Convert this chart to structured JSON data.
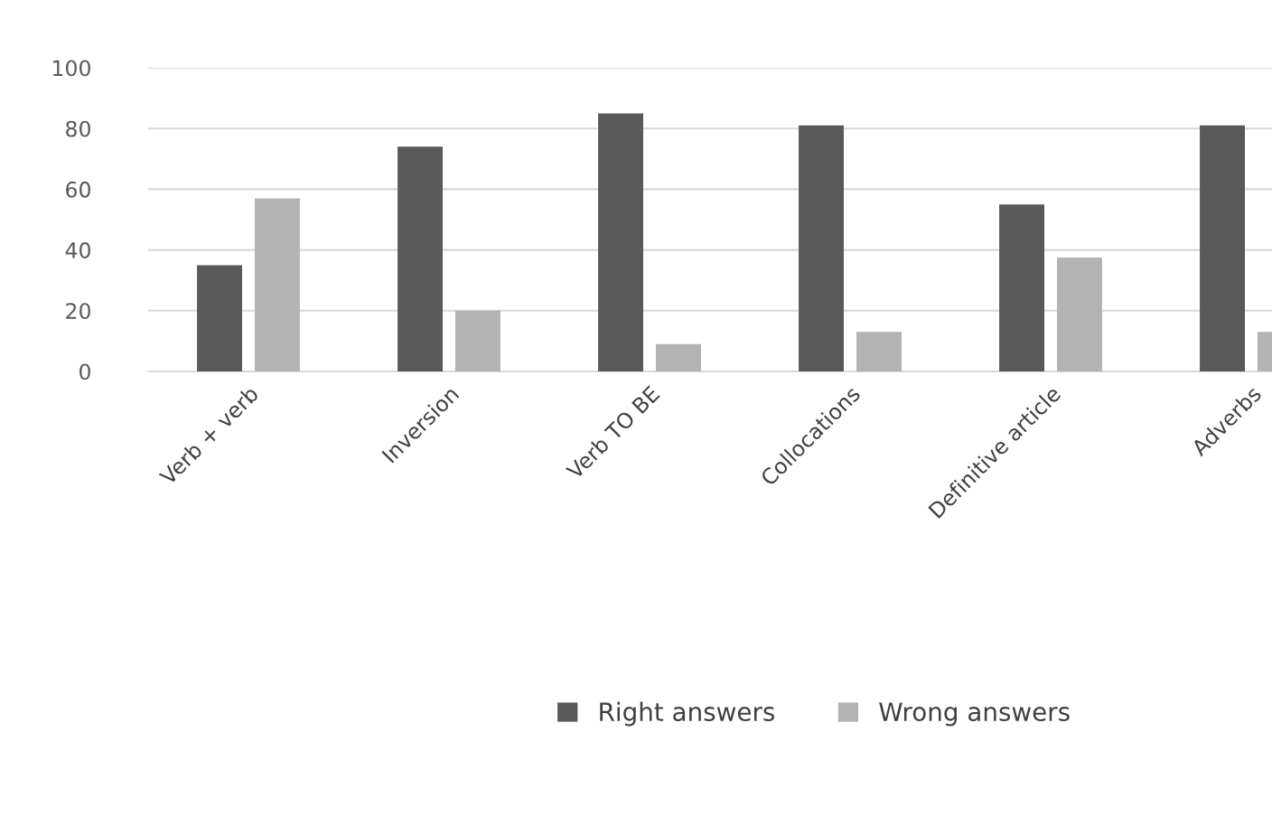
{
  "chart_data": {
    "type": "bar",
    "categories": [
      "Verb + verb",
      "Inversion",
      "Verb TO BE",
      "Collocations",
      "Definitive article",
      "Adverbs"
    ],
    "series": [
      {
        "name": "Right answers",
        "color": "#595959",
        "values": [
          35,
          74,
          85,
          81,
          55,
          81
        ]
      },
      {
        "name": "Wrong answers",
        "color": "#b3b3b3",
        "values": [
          57,
          20,
          9,
          13,
          37.5,
          13
        ]
      }
    ],
    "ylim": [
      0,
      100
    ],
    "yticks": [
      0,
      20,
      40,
      60,
      80,
      100
    ],
    "grid": "y",
    "legend": "bottom"
  }
}
